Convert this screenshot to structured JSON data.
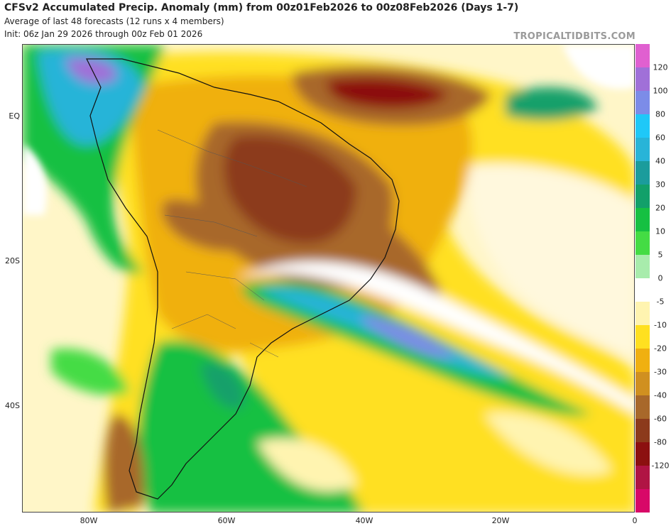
{
  "header": {
    "title": "CFSv2 Accumulated Precip. Anomaly (mm) from 00z01Feb2026 to 00z08Feb2026 (Days 1-7)",
    "line2": "Average of last 48 forecasts (12 runs x 4 members)",
    "line3": "Init: 06z Jan 29 2026 through 00z Feb 01 2026",
    "brand": "TROPICALTIDBITS.COM"
  },
  "axes": {
    "lat_labels": [
      "EQ",
      "20S",
      "40S"
    ],
    "lon_labels": [
      "80W",
      "60W",
      "40W",
      "20W",
      "0"
    ]
  },
  "colorbar": {
    "labels": [
      "120",
      "100",
      "80",
      "60",
      "40",
      "30",
      "20",
      "10",
      "5",
      "0",
      "-5",
      "-10",
      "-20",
      "-30",
      "-40",
      "-60",
      "-80",
      "-120"
    ],
    "colors": [
      "#e060d0",
      "#a070d8",
      "#7c8ce8",
      "#1fc8f8",
      "#28b4d8",
      "#1b9c9c",
      "#12a06a",
      "#16c042",
      "#44dc44",
      "#a8ecac",
      "#ffffff",
      "#fff4b0",
      "#ffe020",
      "#f0b010",
      "#d09020",
      "#a8682a",
      "#8c3a1c",
      "#8c1010",
      "#b01444",
      "#d80868"
    ]
  }
}
